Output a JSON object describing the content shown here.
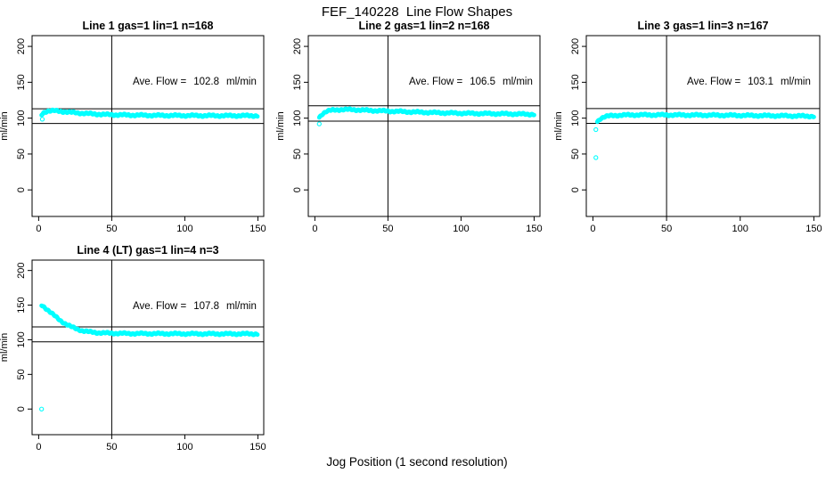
{
  "figure": {
    "title": "FEF_140228  Line Flow Shapes",
    "xlabel": "Jog Position (1 second resolution)",
    "background_color": "#FFFFFF",
    "axis_color": "#000000",
    "point_color": "#00FFFF"
  },
  "chart_data": {
    "type": "scatter",
    "title": "FEF_140228  Line Flow Shapes",
    "xlabel": "Jog Position (1 second resolution)",
    "shared_axes": {
      "x_ticks": [
        0,
        50,
        100,
        150
      ],
      "y_ticks": [
        0,
        50,
        100,
        150,
        200
      ],
      "xlim": [
        -4.5,
        154
      ],
      "ylim": [
        -37,
        215
      ],
      "ylabel": "ml/min",
      "vline_x": 50,
      "grid": false,
      "marker": "open-circle",
      "marker_color": "#00FFFF"
    },
    "plots": [
      {
        "title": "Line 1 gas=1 lin=1 n=168",
        "line": 1,
        "gas": 1,
        "lin": 1,
        "n": 168,
        "ave_flow": 102.8,
        "annotation": {
          "label": "Ave. Flow =",
          "value": "102.8",
          "unit": "ml/min"
        },
        "hlines": [
          113.1,
          92.5
        ],
        "curve": [
          [
            2,
            105
          ],
          [
            4,
            108.5
          ],
          [
            6,
            110
          ],
          [
            10,
            110.3
          ],
          [
            15,
            109.5
          ],
          [
            22,
            108
          ],
          [
            32,
            106.5
          ],
          [
            45,
            105
          ],
          [
            60,
            104.3
          ],
          [
            80,
            103.8
          ],
          [
            100,
            103.6
          ],
          [
            125,
            103.4
          ],
          [
            150,
            103.4
          ]
        ],
        "outliers": [
          [
            2.5,
            98.5
          ]
        ]
      },
      {
        "title": "Line 2 gas=1 lin=2 n=168",
        "line": 2,
        "gas": 1,
        "lin": 2,
        "n": 168,
        "ave_flow": 106.5,
        "annotation": {
          "label": "Ave. Flow =",
          "value": "106.5",
          "unit": "ml/min"
        },
        "hlines": [
          117.2,
          95.9
        ],
        "curve": [
          [
            3,
            101
          ],
          [
            5,
            106
          ],
          [
            8,
            109.5
          ],
          [
            12,
            111
          ],
          [
            18,
            112
          ],
          [
            26,
            111.8
          ],
          [
            36,
            110.8
          ],
          [
            50,
            109.8
          ],
          [
            68,
            108.5
          ],
          [
            88,
            107.3
          ],
          [
            110,
            106.5
          ],
          [
            130,
            106
          ],
          [
            150,
            105.3
          ]
        ],
        "outliers": [
          [
            3,
            92
          ]
        ]
      },
      {
        "title": "Line 3 gas=1 lin=3 n=167",
        "line": 3,
        "gas": 1,
        "lin": 3,
        "n": 167,
        "ave_flow": 103.1,
        "annotation": {
          "label": "Ave. Flow =",
          "value": "103.1",
          "unit": "ml/min"
        },
        "hlines": [
          113.4,
          92.8
        ],
        "curve": [
          [
            3,
            95
          ],
          [
            5,
            99.5
          ],
          [
            8,
            102
          ],
          [
            13,
            103.5
          ],
          [
            20,
            104.2
          ],
          [
            30,
            104.5
          ],
          [
            45,
            104.5
          ],
          [
            65,
            104.3
          ],
          [
            90,
            104
          ],
          [
            115,
            103.5
          ],
          [
            140,
            103
          ],
          [
            150,
            102.6
          ]
        ],
        "outliers": [
          [
            2,
            84
          ],
          [
            2,
            45
          ]
        ]
      },
      {
        "title": "Line 4 (LT) gas=1 lin=4 n=3",
        "line": 4,
        "gas": 1,
        "lin": 4,
        "n": 3,
        "ave_flow": 107.8,
        "annotation": {
          "label": "Ave. Flow =",
          "value": "107.8",
          "unit": "ml/min"
        },
        "hlines": [
          118.6,
          97.0
        ],
        "curve": [
          [
            2,
            150
          ],
          [
            4,
            147
          ],
          [
            6,
            143.5
          ],
          [
            9,
            138
          ],
          [
            12,
            132.5
          ],
          [
            15,
            127.5
          ],
          [
            18,
            123.5
          ],
          [
            22,
            119
          ],
          [
            26,
            115.5
          ],
          [
            30,
            113
          ],
          [
            35,
            111.2
          ],
          [
            40,
            110.2
          ],
          [
            48,
            109.5
          ],
          [
            60,
            109
          ],
          [
            80,
            108.8
          ],
          [
            105,
            108.6
          ],
          [
            130,
            108.5
          ],
          [
            150,
            108.5
          ]
        ],
        "outliers": [
          [
            2,
            0
          ]
        ]
      }
    ]
  }
}
